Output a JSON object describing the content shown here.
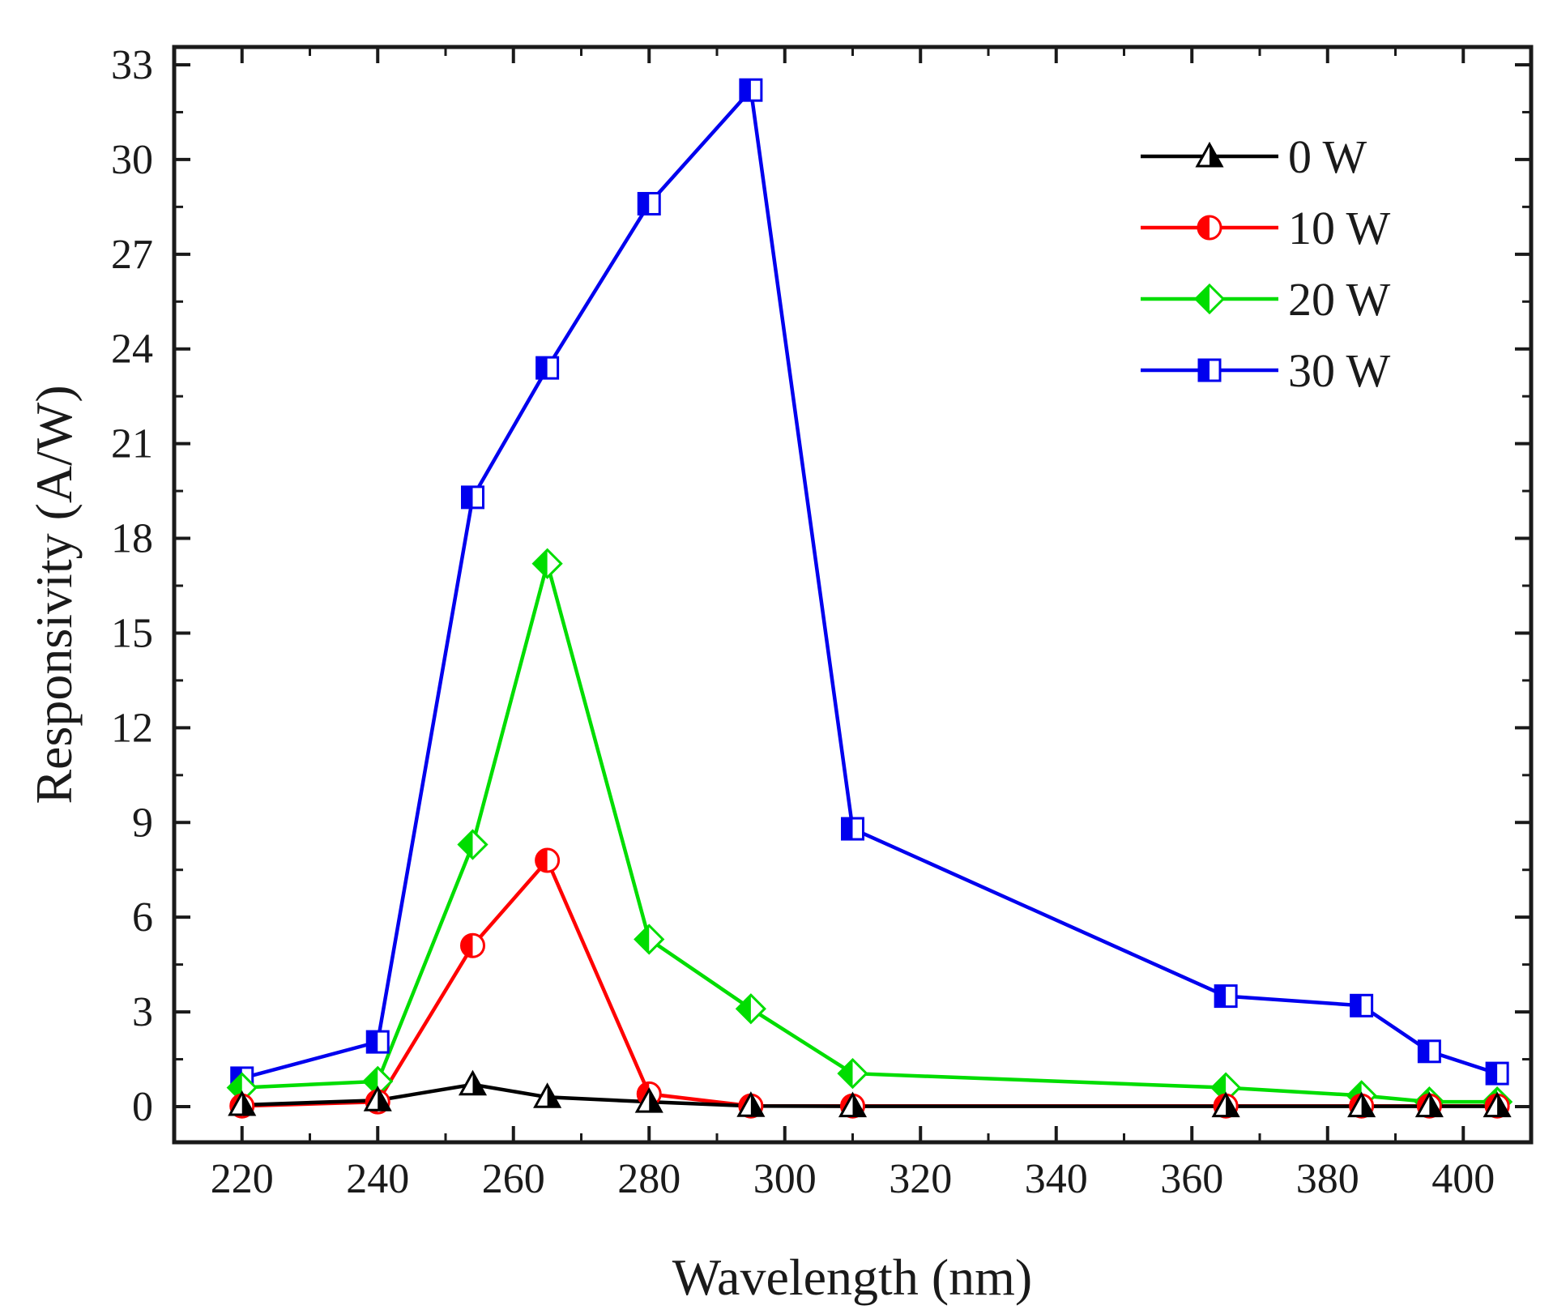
{
  "chart_data": {
    "type": "line",
    "title": "",
    "xlabel": "Wavelength (nm)",
    "ylabel": "Responsivity (A/W)",
    "xlim": [
      210,
      410
    ],
    "ylim": [
      -1,
      33
    ],
    "xticks": [
      220,
      240,
      260,
      280,
      300,
      320,
      340,
      360,
      380,
      400
    ],
    "yticks": [
      0,
      3,
      6,
      9,
      12,
      15,
      18,
      21,
      24,
      27,
      30,
      33
    ],
    "x": [
      220,
      240,
      254,
      265,
      280,
      295,
      310,
      365,
      385,
      395,
      405
    ],
    "grid": false,
    "legend_position": "top-right",
    "series": [
      {
        "name": "0 W",
        "color": "#000000",
        "marker": "triangle",
        "values": [
          0.05,
          0.2,
          0.7,
          0.3,
          0.15,
          0.02,
          0.01,
          0.01,
          0.01,
          0.01,
          0.01
        ]
      },
      {
        "name": "10 W",
        "color": "#ff0000",
        "marker": "circle",
        "values": [
          0.02,
          0.15,
          5.1,
          7.8,
          0.4,
          0.02,
          0.02,
          0.02,
          0.02,
          0.02,
          0.02
        ]
      },
      {
        "name": "20 W",
        "color": "#00dd00",
        "marker": "diamond",
        "values": [
          0.6,
          0.8,
          8.3,
          17.2,
          5.3,
          3.1,
          1.05,
          0.6,
          0.35,
          0.15,
          0.15
        ]
      },
      {
        "name": "30 W",
        "color": "#0000ee",
        "marker": "square",
        "values": [
          0.9,
          2.05,
          19.3,
          23.4,
          28.6,
          32.2,
          8.8,
          3.5,
          3.2,
          1.75,
          1.05
        ]
      }
    ]
  }
}
